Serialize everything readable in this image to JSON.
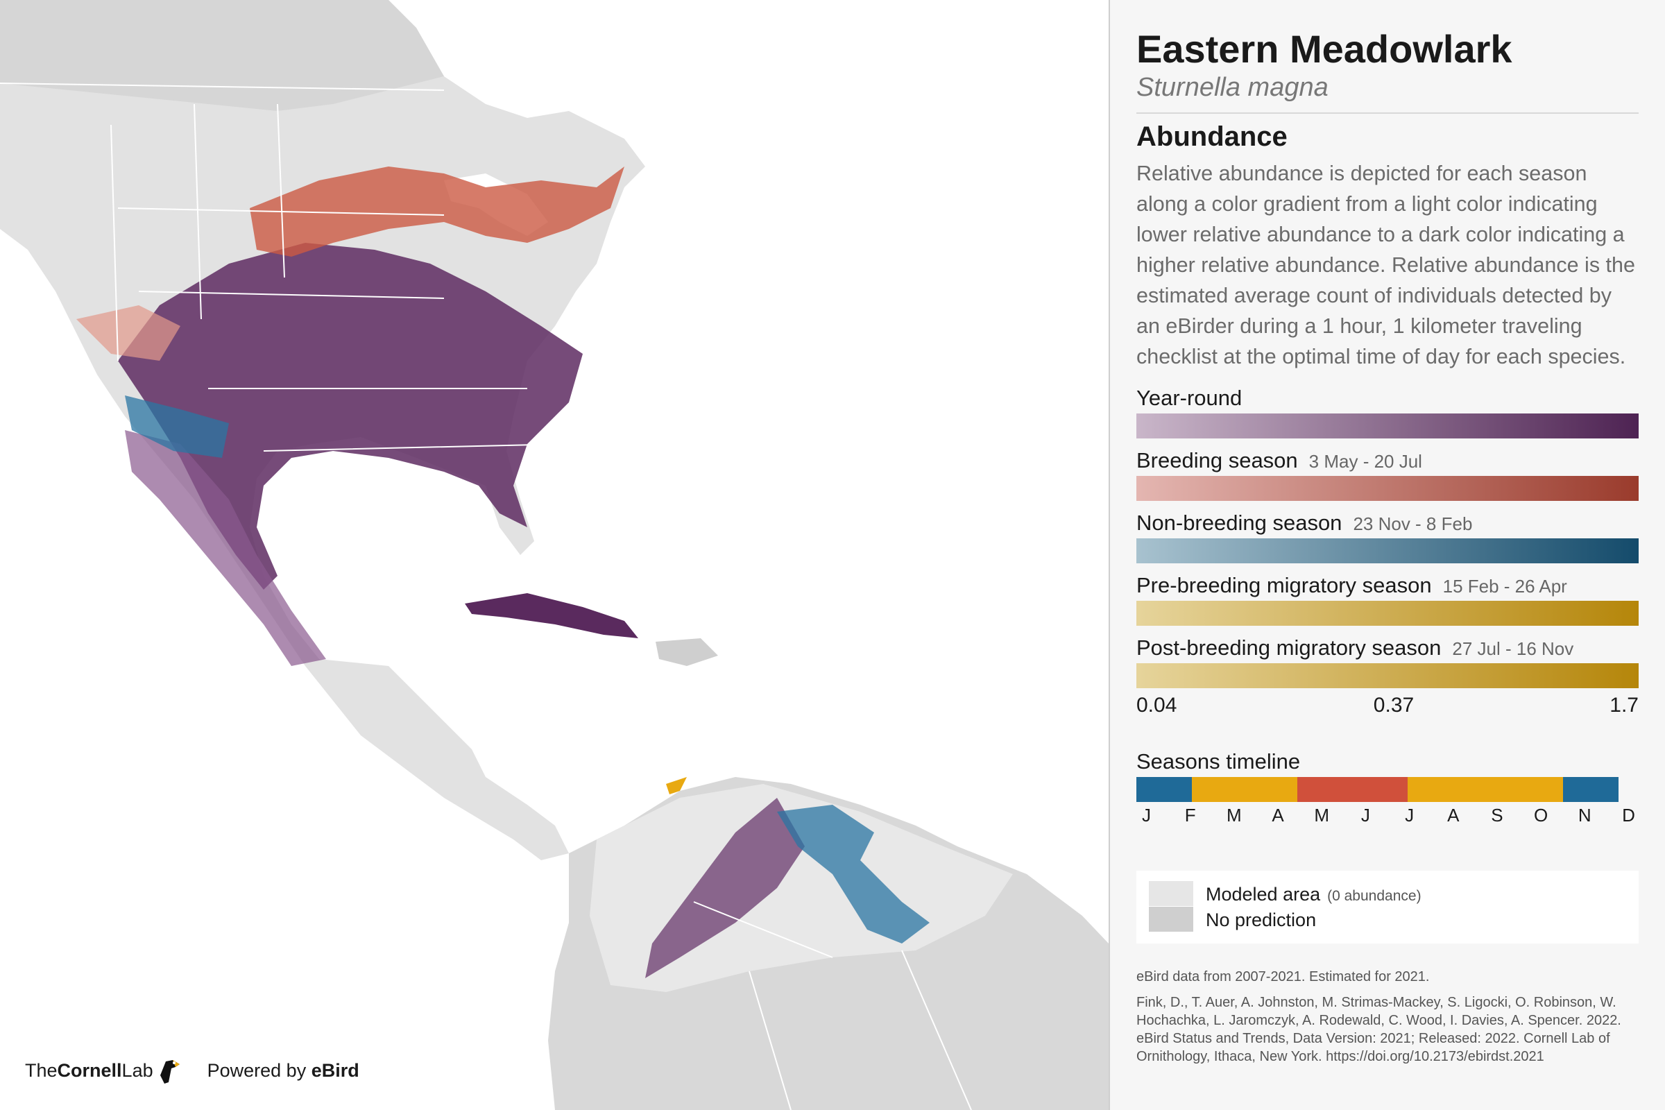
{
  "species": {
    "common_name": "Eastern Meadowlark",
    "scientific_name": "Sturnella magna"
  },
  "abundance": {
    "heading": "Abundance",
    "description": "Relative abundance is depicted for each season along a color gradient from a light color indicating lower relative abundance to a dark color indicating a higher relative abundance. Relative abundance is the estimated average count of individuals detected by an eBirder during a 1 hour, 1 kilometer traveling checklist at the optimal time of day for each species."
  },
  "seasons": [
    {
      "label": "Year-round",
      "dates": "",
      "color_light": "#c9b6c9",
      "color_dark": "#4e2353"
    },
    {
      "label": "Breeding season",
      "dates": "3 May - 20 Jul",
      "color_light": "#e4b6b1",
      "color_dark": "#9a3b2c"
    },
    {
      "label": "Non-breeding season",
      "dates": "23 Nov - 8 Feb",
      "color_light": "#a8c2cf",
      "color_dark": "#144b6b"
    },
    {
      "label": "Pre-breeding migratory season",
      "dates": "15 Feb - 26 Apr",
      "color_light": "#e6d49b",
      "color_dark": "#b5860a"
    },
    {
      "label": "Post-breeding migratory season",
      "dates": "27 Jul - 16 Nov",
      "color_light": "#e6d49b",
      "color_dark": "#b5860a"
    }
  ],
  "scale": {
    "min": "0.04",
    "mid": "0.37",
    "max": "1.7"
  },
  "timeline": {
    "heading": "Seasons timeline",
    "segments": [
      {
        "season": "non-breeding",
        "color": "#1f6a98",
        "share": 0.11
      },
      {
        "season": "pre-breeding",
        "color": "#e8a911",
        "share": 0.21
      },
      {
        "season": "breeding",
        "color": "#d0503b",
        "share": 0.22
      },
      {
        "season": "post-breeding",
        "color": "#e8a911",
        "share": 0.31
      },
      {
        "season": "non-breeding",
        "color": "#1f6a98",
        "share": 0.11
      }
    ],
    "months": [
      "J",
      "F",
      "M",
      "A",
      "M",
      "J",
      "J",
      "A",
      "S",
      "O",
      "N",
      "D"
    ]
  },
  "legend": {
    "modeled_label": "Modeled area",
    "modeled_sub": "(0 abundance)",
    "no_prediction_label": "No prediction",
    "modeled_color": "#e6e6e6",
    "no_prediction_color": "#cfcfcf"
  },
  "footer": {
    "data_note": "eBird data from 2007-2021. Estimated for 2021.",
    "citation": "Fink, D., T. Auer, A. Johnston, M. Strimas-Mackey, S. Ligocki, O. Robinson, W. Hochachka, L. Jaromczyk, A. Rodewald, C. Wood, I. Davies, A. Spencer. 2022. eBird Status and Trends, Data Version: 2021; Released: 2022. Cornell Lab of Ornithology, Ithaca, New York. https://doi.org/10.2173/ebirdst.2021"
  },
  "logos": {
    "cornell_prefix": "The",
    "cornell_bold": "Cornell",
    "cornell_suffix": "Lab",
    "powered": "Powered by ",
    "ebird": "eBird"
  }
}
